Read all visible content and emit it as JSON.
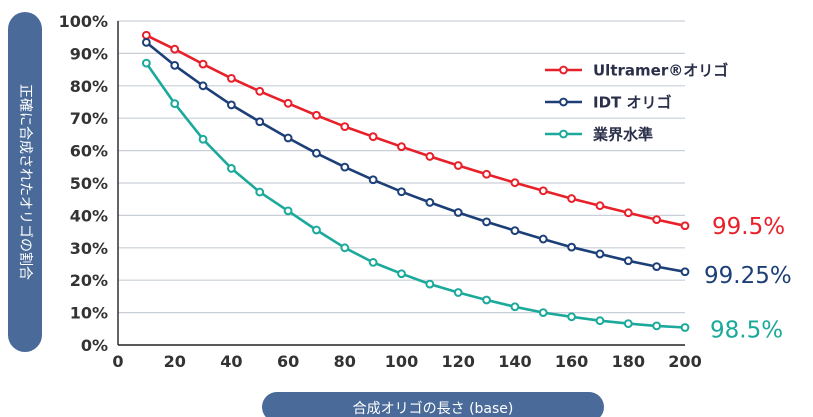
{
  "chart_data": {
    "type": "line",
    "xlabel": "合成オリゴの長さ (base)",
    "ylabel": "正確に合成されたオリゴの割合",
    "xlim": [
      0,
      200
    ],
    "ylim": [
      0,
      100
    ],
    "x_ticks": [
      "0",
      "20",
      "40",
      "60",
      "80",
      "100",
      "120",
      "140",
      "160",
      "180",
      "200"
    ],
    "y_ticks": [
      "0%",
      "10%",
      "20%",
      "30%",
      "40%",
      "50%",
      "60%",
      "70%",
      "80%",
      "90%",
      "100%"
    ],
    "grid": true,
    "legend_position": "top-right",
    "x": [
      10,
      20,
      30,
      40,
      50,
      60,
      70,
      80,
      90,
      100,
      110,
      120,
      130,
      140,
      150,
      160,
      170,
      180,
      190,
      200
    ],
    "series": [
      {
        "name": "Ultramer®オリゴ",
        "color": "#e8202a",
        "end_label": "99.5%",
        "values": [
          95.6,
          91.3,
          86.7,
          82.3,
          78.3,
          74.6,
          70.9,
          67.4,
          64.3,
          61.2,
          58.2,
          55.4,
          52.7,
          50.1,
          47.6,
          45.2,
          43.0,
          40.8,
          38.7,
          36.8
        ]
      },
      {
        "name": "IDT オリゴ",
        "color": "#1c3f78",
        "end_label": "99.25%",
        "values": [
          93.4,
          86.3,
          80.0,
          74.1,
          68.9,
          63.9,
          59.2,
          54.9,
          51.0,
          47.3,
          44.0,
          40.9,
          38.0,
          35.3,
          32.7,
          30.2,
          28.1,
          26.0,
          24.2,
          22.6
        ]
      },
      {
        "name": "業界水準",
        "color": "#1aa99a",
        "end_label": "98.5%",
        "values": [
          87.0,
          74.5,
          63.5,
          54.5,
          47.2,
          41.4,
          35.5,
          30.0,
          25.5,
          22.0,
          18.8,
          16.2,
          13.9,
          11.8,
          10.0,
          8.7,
          7.5,
          6.6,
          5.9,
          5.4
        ]
      }
    ]
  }
}
